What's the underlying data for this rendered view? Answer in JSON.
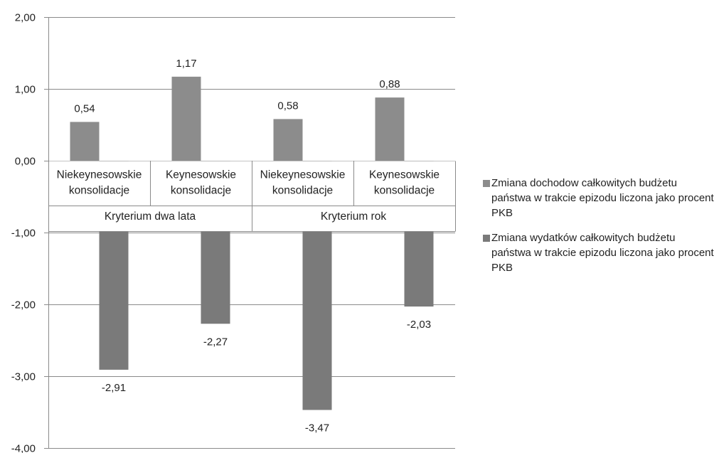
{
  "chart_data": {
    "type": "bar",
    "title": "",
    "xlabel": "",
    "ylabel": "",
    "ylim": [
      -4,
      2
    ],
    "yticks": [
      "2,00",
      "1,00",
      "0,00",
      "-1,00",
      "-2,00",
      "-3,00",
      "-4,00"
    ],
    "ytick_values": [
      2,
      1,
      0,
      -1,
      -2,
      -3,
      -4
    ],
    "categories": [
      [
        "Niekeynesowskie",
        "konsolidacje"
      ],
      [
        "Keynesowskie",
        "konsolidacje"
      ],
      [
        "Niekeynesowskie",
        "konsolidacje"
      ],
      [
        "Keynesowskie",
        "konsolidacje"
      ]
    ],
    "groups": [
      {
        "label": "Kryterium dwa lata",
        "span": 2
      },
      {
        "label": "Kryterium rok",
        "span": 2
      }
    ],
    "series": [
      {
        "name": "Zmiana dochodow całkowitych budżetu państwa w trakcie epizodu liczona jako procent PKB",
        "values": [
          0.54,
          1.17,
          0.58,
          0.88
        ],
        "labels": [
          "0,54",
          "1,17",
          "0,58",
          "0,88"
        ],
        "color": "#8c8c8c"
      },
      {
        "name": "Zmiana wydatków całkowitych budżetu państwa w trakcie epizodu liczona jako procent PKB",
        "values": [
          -2.91,
          -2.27,
          -3.47,
          -2.03
        ],
        "labels": [
          "-2,91",
          "-2,27",
          "-3,47",
          "-2,03"
        ],
        "color": "#7a7a7a"
      }
    ],
    "grid": true,
    "legend_position": "right"
  }
}
